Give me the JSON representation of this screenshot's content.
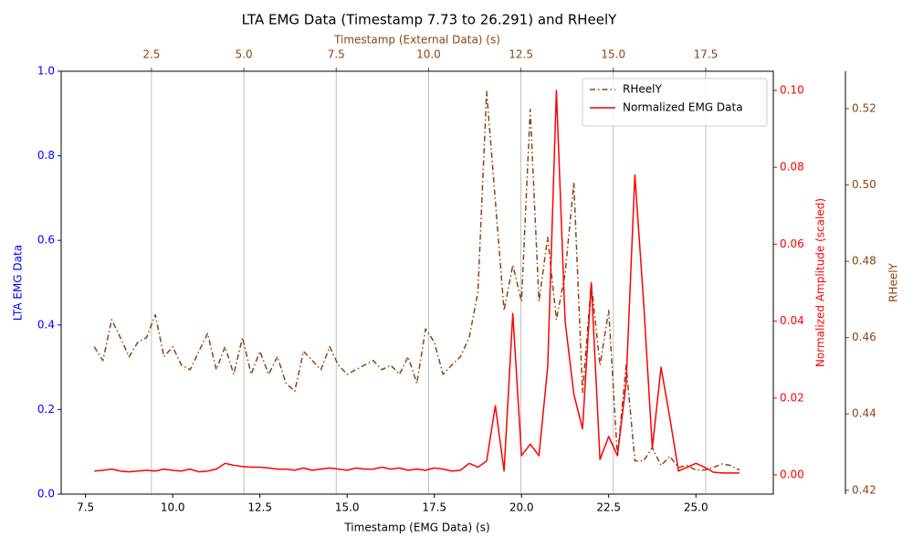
{
  "chart_data": {
    "type": "line",
    "title": "LTA EMG Data (Timestamp 7.73 to 26.291) and RHeelY",
    "x_label": "Timestamp (EMG Data) (s)",
    "x2_label": "Timestamp (External Data) (s)",
    "y_label": "LTA EMG Data",
    "y2_label": "Normalized Amplitude (scaled)",
    "y3_label": "RHeelY",
    "y_color": "#0000ff",
    "y2_color": "#ff0000",
    "y3_color": "#8b4513",
    "x2_color": "#8b4513",
    "grid": "x2",
    "legend": "upper right",
    "xlim": [
      6.802,
      27.219
    ],
    "xticks": [
      {
        "value": 7.5,
        "label": "7.5"
      },
      {
        "value": 10,
        "label": "10.0"
      },
      {
        "value": 12.5,
        "label": "12.5"
      },
      {
        "value": 15,
        "label": "15.0"
      },
      {
        "value": 17.5,
        "label": "17.5"
      },
      {
        "value": 20,
        "label": "20.0"
      },
      {
        "value": 22.5,
        "label": "22.5"
      },
      {
        "value": 25,
        "label": "25.0"
      }
    ],
    "x2lim": [
      0.056,
      19.33
    ],
    "x2ticks": [
      {
        "value": 2.5,
        "label": "2.5"
      },
      {
        "value": 5,
        "label": "5.0"
      },
      {
        "value": 7.5,
        "label": "7.5"
      },
      {
        "value": 10,
        "label": "10.0"
      },
      {
        "value": 12.5,
        "label": "12.5"
      },
      {
        "value": 15,
        "label": "15.0"
      },
      {
        "value": 17.5,
        "label": "17.5"
      }
    ],
    "ylim": [
      0,
      1
    ],
    "yticks": [
      {
        "value": 0,
        "label": "0.0"
      },
      0.2,
      0.4,
      0.6,
      0.8,
      {
        "value": 1,
        "label": "1.0"
      }
    ],
    "y2lim": [
      -0.005,
      0.105
    ],
    "y2ticks": [
      {
        "value": 0,
        "label": "0.00"
      },
      0.02,
      0.04,
      0.06,
      0.08,
      {
        "value": 0.1,
        "label": "0.10"
      }
    ],
    "y3lim": [
      0.419,
      0.5298
    ],
    "y3ticks": [
      0.42,
      0.44,
      0.46,
      0.48,
      {
        "value": 0.5,
        "label": "0.50"
      },
      0.52
    ],
    "x": [
      7.75,
      8,
      8.25,
      8.5,
      8.75,
      9,
      9.25,
      9.5,
      9.75,
      10,
      10.25,
      10.5,
      10.75,
      11,
      11.25,
      11.5,
      11.75,
      12,
      12.25,
      12.5,
      12.75,
      13,
      13.25,
      13.5,
      13.75,
      14,
      14.25,
      14.5,
      14.75,
      15,
      15.25,
      15.5,
      15.75,
      16,
      16.25,
      16.5,
      16.75,
      17,
      17.25,
      17.5,
      17.75,
      18,
      18.25,
      18.5,
      18.75,
      19,
      19.25,
      19.5,
      19.75,
      20,
      20.25,
      20.5,
      20.75,
      21,
      21.25,
      21.5,
      21.75,
      22,
      22.25,
      22.5,
      22.75,
      23,
      23.25,
      23.5,
      23.75,
      24,
      24.25,
      24.5,
      24.75,
      25,
      25.25,
      25.5,
      25.75,
      26,
      26.25
    ],
    "series": [
      {
        "name": "RHeelY",
        "color": "#8b4513",
        "axis": "y3",
        "linestyle": "dashdot",
        "values": [
          0.4576,
          0.454,
          0.4647,
          0.46,
          0.455,
          0.4588,
          0.46,
          0.466,
          0.455,
          0.4576,
          0.4528,
          0.4516,
          0.4564,
          0.4611,
          0.4516,
          0.4576,
          0.4504,
          0.46,
          0.4504,
          0.4564,
          0.4504,
          0.455,
          0.448,
          0.446,
          0.4564,
          0.454,
          0.4516,
          0.4576,
          0.4528,
          0.4504,
          0.4516,
          0.4528,
          0.454,
          0.4516,
          0.4528,
          0.4504,
          0.455,
          0.448,
          0.4623,
          0.4588,
          0.4504,
          0.4528,
          0.455,
          0.46,
          0.4719,
          0.5245,
          0.4958,
          0.4671,
          0.479,
          0.4695,
          0.5198,
          0.4695,
          0.4863,
          0.4647,
          0.4767,
          0.5006,
          0.4456,
          0.4743,
          0.4528,
          0.4671,
          0.4289,
          0.4528,
          0.4277,
          0.4277,
          0.4312,
          0.4265,
          0.4289,
          0.426,
          0.4265,
          0.4253,
          0.4253,
          0.426,
          0.4269,
          0.4265,
          0.4253
        ]
      },
      {
        "name": "Normalized EMG Data",
        "color": "#ff0000",
        "axis": "y2",
        "linestyle": "solid",
        "values": [
          0.001,
          0.0012,
          0.0015,
          0.001,
          0.0008,
          0.001,
          0.0012,
          0.001,
          0.0015,
          0.0012,
          0.001,
          0.0015,
          0.0008,
          0.001,
          0.0015,
          0.003,
          0.0025,
          0.0022,
          0.002,
          0.002,
          0.0018,
          0.0015,
          0.0015,
          0.0012,
          0.0018,
          0.0012,
          0.0015,
          0.0018,
          0.0015,
          0.0012,
          0.0018,
          0.0015,
          0.0015,
          0.002,
          0.0015,
          0.0018,
          0.0012,
          0.0015,
          0.0012,
          0.0018,
          0.0015,
          0.001,
          0.0012,
          0.003,
          0.002,
          0.0036,
          0.018,
          0.001,
          0.042,
          0.005,
          0.008,
          0.005,
          0.028,
          0.1,
          0.04,
          0.021,
          0.012,
          0.05,
          0.004,
          0.01,
          0.005,
          0.024,
          0.078,
          0.045,
          0.007,
          0.028,
          0.015,
          0.001,
          0.002,
          0.003,
          0.002,
          0.0007,
          0.0005,
          0.0005,
          0.0005
        ]
      }
    ]
  }
}
